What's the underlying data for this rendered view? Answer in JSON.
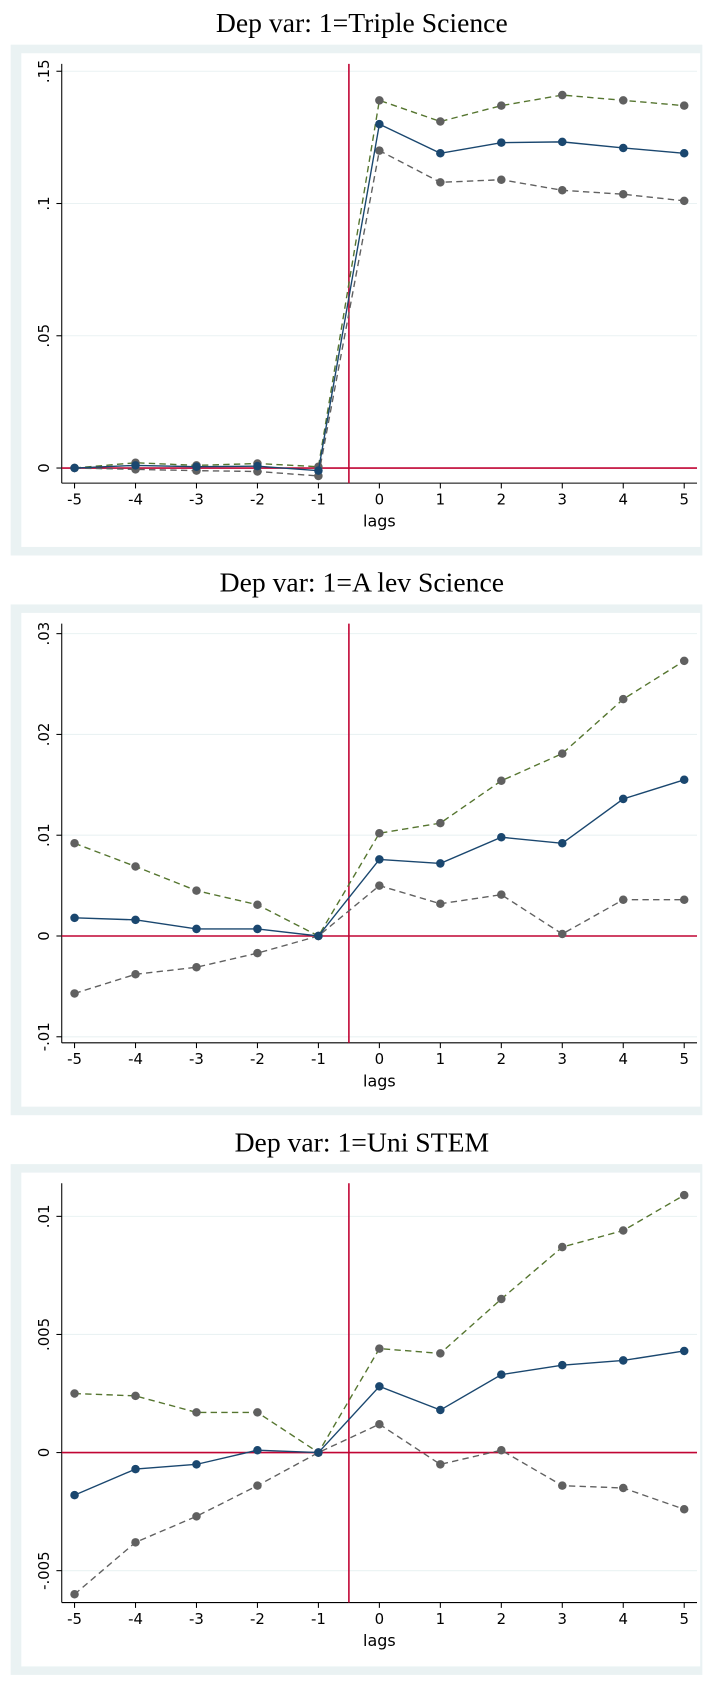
{
  "chart_data": [
    {
      "type": "line",
      "title": "Dep var: 1=Triple Science",
      "xlabel": "lags",
      "x": [
        -5,
        -4,
        -3,
        -2,
        -1,
        0,
        1,
        2,
        3,
        4,
        5
      ],
      "xlim": [
        -5.21,
        5.21
      ],
      "xticks": [
        -5,
        -4,
        -3,
        -2,
        -1,
        0,
        1,
        2,
        3,
        4,
        5
      ],
      "ylim": [
        -0.0057,
        0.1528
      ],
      "yticks": [
        {
          "value": 0,
          "label": "0"
        },
        {
          "value": 0.05,
          "label": ".05"
        },
        {
          "value": 0.1,
          "label": ".1"
        },
        {
          "value": 0.15,
          "label": ".15"
        }
      ],
      "grid": true,
      "vline": -0.5,
      "hline": 0,
      "refcolor": "#c10534",
      "series": [
        {
          "color": "#55752f",
          "marker_color": "#606060",
          "dashed": true,
          "values": [
            0,
            0.002,
            0.001,
            0.0017,
            0.0005,
            0.139,
            0.131,
            0.137,
            0.141,
            0.139,
            0.137
          ]
        },
        {
          "color": "#606060",
          "marker_color": "#606060",
          "dashed": true,
          "values": [
            0,
            -0.0005,
            -0.001,
            -0.0013,
            -0.003,
            0.12,
            0.108,
            0.109,
            0.105,
            0.1035,
            0.101
          ]
        },
        {
          "color": "#1a476f",
          "marker_color": "#1a476f",
          "dashed": false,
          "values": [
            0,
            0.001,
            0.0005,
            0.0007,
            -0.001,
            0.13,
            0.119,
            0.123,
            0.1233,
            0.121,
            0.119
          ]
        }
      ]
    },
    {
      "type": "line",
      "title": "Dep var: 1=A lev Science",
      "xlabel": "lags",
      "x": [
        -5,
        -4,
        -3,
        -2,
        -1,
        0,
        1,
        2,
        3,
        4,
        5
      ],
      "xlim": [
        -5.21,
        5.21
      ],
      "xticks": [
        -5,
        -4,
        -3,
        -2,
        -1,
        0,
        1,
        2,
        3,
        4,
        5
      ],
      "ylim": [
        -0.0106,
        0.031
      ],
      "yticks": [
        {
          "value": -0.01,
          "label": "-.01"
        },
        {
          "value": 0,
          "label": "0"
        },
        {
          "value": 0.01,
          "label": ".01"
        },
        {
          "value": 0.02,
          "label": ".02"
        },
        {
          "value": 0.03,
          "label": ".03"
        }
      ],
      "grid": true,
      "vline": -0.5,
      "hline": 0,
      "refcolor": "#c10534",
      "series": [
        {
          "color": "#55752f",
          "marker_color": "#606060",
          "dashed": true,
          "values": [
            0.0092,
            0.0069,
            0.0045,
            0.0031,
            0,
            0.0102,
            0.0112,
            0.0154,
            0.0181,
            0.0235,
            0.0273
          ]
        },
        {
          "color": "#606060",
          "marker_color": "#606060",
          "dashed": true,
          "values": [
            -0.0057,
            -0.0038,
            -0.0031,
            -0.0017,
            0,
            0.005,
            0.0032,
            0.0041,
            0.0002,
            0.0036,
            0.0036
          ]
        },
        {
          "color": "#1a476f",
          "marker_color": "#1a476f",
          "dashed": false,
          "values": [
            0.0018,
            0.0016,
            0.0007,
            0.0007,
            0,
            0.0076,
            0.0072,
            0.0098,
            0.0092,
            0.0136,
            0.0155
          ]
        }
      ]
    },
    {
      "type": "line",
      "title": "Dep var: 1=Uni STEM",
      "xlabel": "lags",
      "x": [
        -5,
        -4,
        -3,
        -2,
        -1,
        0,
        1,
        2,
        3,
        4,
        5
      ],
      "xlim": [
        -5.21,
        5.21
      ],
      "xticks": [
        -5,
        -4,
        -3,
        -2,
        -1,
        0,
        1,
        2,
        3,
        4,
        5
      ],
      "ylim": [
        -0.00635,
        0.0114
      ],
      "yticks": [
        {
          "value": -0.005,
          "label": "-.005"
        },
        {
          "value": 0,
          "label": "0"
        },
        {
          "value": 0.005,
          "label": ".005"
        },
        {
          "value": 0.01,
          "label": ".01"
        }
      ],
      "grid": true,
      "vline": -0.5,
      "hline": 0,
      "refcolor": "#c10534",
      "series": [
        {
          "color": "#55752f",
          "marker_color": "#606060",
          "dashed": true,
          "values": [
            0.0025,
            0.0024,
            0.0017,
            0.0017,
            0,
            0.0044,
            0.0042,
            0.0065,
            0.0087,
            0.0094,
            0.0109
          ]
        },
        {
          "color": "#606060",
          "marker_color": "#606060",
          "dashed": true,
          "values": [
            -0.006,
            -0.0038,
            -0.0027,
            -0.0014,
            0,
            0.0012,
            -0.0005,
            0.0001,
            -0.0014,
            -0.0015,
            -0.0024
          ]
        },
        {
          "color": "#1a476f",
          "marker_color": "#1a476f",
          "dashed": false,
          "values": [
            -0.0018,
            -0.0007,
            -0.0005,
            0.0001,
            0,
            0.0028,
            0.0018,
            0.0033,
            0.0037,
            0.0039,
            0.0043
          ]
        }
      ]
    }
  ]
}
